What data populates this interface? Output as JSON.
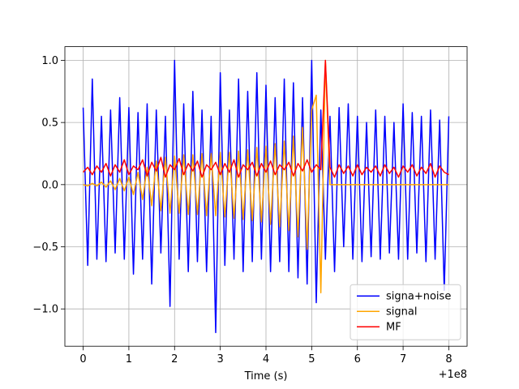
{
  "chart_data": {
    "type": "line",
    "xlabel": "Time (s)",
    "x_offset_label": "+1e8",
    "x": [
      0,
      0.1,
      0.2,
      0.3,
      0.4,
      0.5,
      0.6,
      0.7,
      0.8,
      0.9,
      1,
      1.1,
      1.2,
      1.3,
      1.4,
      1.5,
      1.6,
      1.7,
      1.8,
      1.9,
      2,
      2.1,
      2.2,
      2.3,
      2.4,
      2.5,
      2.6,
      2.7,
      2.8,
      2.9,
      3,
      3.1,
      3.2,
      3.3,
      3.4,
      3.5,
      3.6,
      3.7,
      3.8,
      3.9,
      4,
      4.1,
      4.2,
      4.3,
      4.4,
      4.5,
      4.6,
      4.7,
      4.8,
      4.9,
      5,
      5.1,
      5.2,
      5.3,
      5.4,
      5.5,
      5.6,
      5.7,
      5.8,
      5.9,
      6,
      6.1,
      6.2,
      6.3,
      6.4,
      6.5,
      6.6,
      6.7,
      6.8,
      6.9,
      7,
      7.1,
      7.2,
      7.3,
      7.4,
      7.5,
      7.6,
      7.7,
      7.8,
      7.9,
      8
    ],
    "series": [
      {
        "name": "signa+noise",
        "color": "#0000ff",
        "values": [
          0.62,
          -0.65,
          0.85,
          -0.6,
          0.55,
          -0.62,
          0.6,
          -0.55,
          0.7,
          -0.6,
          0.62,
          -0.72,
          0.58,
          -0.6,
          0.65,
          -0.8,
          0.6,
          -0.55,
          0.55,
          -0.98,
          1.0,
          -0.6,
          0.65,
          -0.7,
          0.75,
          -0.62,
          0.6,
          -0.7,
          0.55,
          -1.19,
          0.9,
          -0.65,
          0.6,
          -0.6,
          0.85,
          -0.7,
          0.75,
          -0.62,
          0.9,
          -0.6,
          0.8,
          -0.7,
          0.7,
          -0.62,
          0.85,
          -0.7,
          0.82,
          -0.75,
          0.7,
          -0.8,
          1.0,
          -0.95,
          0.6,
          -0.6,
          0.55,
          -0.7,
          0.62,
          -0.5,
          0.65,
          -0.6,
          0.55,
          -0.62,
          0.5,
          -0.58,
          0.6,
          -0.6,
          0.55,
          -0.55,
          0.5,
          -0.6,
          0.65,
          -0.6,
          0.58,
          -0.55,
          0.55,
          -0.62,
          0.6,
          -0.6,
          0.52,
          -0.85,
          0.55
        ]
      },
      {
        "name": "signal",
        "color": "#ffa500",
        "values": [
          0,
          -0.01,
          0.01,
          -0.01,
          0.02,
          -0.02,
          0.03,
          -0.04,
          0.05,
          -0.05,
          0.06,
          -0.08,
          0.1,
          -0.12,
          0.14,
          -0.17,
          0.19,
          -0.21,
          0.22,
          -0.23,
          0.23,
          -0.23,
          0.24,
          -0.24,
          0.24,
          -0.24,
          0.25,
          -0.25,
          0.25,
          -0.25,
          0.26,
          -0.26,
          0.26,
          -0.27,
          0.27,
          -0.28,
          0.28,
          -0.29,
          0.3,
          -0.3,
          0.31,
          -0.32,
          0.33,
          -0.34,
          0.35,
          -0.37,
          0.39,
          -0.42,
          0.46,
          -0.52,
          0.6,
          0.72,
          -0.87,
          1.0,
          0,
          0,
          0,
          0,
          0,
          0,
          0,
          0,
          0,
          0,
          0,
          0,
          0,
          0,
          0,
          0,
          0,
          0,
          0,
          0,
          0,
          0,
          0,
          0,
          0,
          0,
          0
        ]
      },
      {
        "name": "MF",
        "color": "#ff0000",
        "values": [
          0.1,
          0.14,
          0.08,
          0.15,
          0.1,
          0.17,
          0.07,
          0.16,
          0.1,
          0.2,
          0.08,
          0.15,
          0.12,
          0.2,
          0.07,
          0.18,
          0.11,
          0.22,
          0.06,
          0.16,
          0.12,
          0.21,
          0.08,
          0.17,
          0.11,
          0.19,
          0.06,
          0.16,
          0.12,
          0.18,
          0.08,
          0.17,
          0.1,
          0.2,
          0.06,
          0.16,
          0.12,
          0.18,
          0.07,
          0.17,
          0.1,
          0.19,
          0.08,
          0.16,
          0.12,
          0.18,
          0.07,
          0.17,
          0.11,
          0.2,
          0.1,
          0.16,
          0.12,
          1.0,
          0.14,
          0.06,
          0.16,
          0.09,
          0.15,
          0.07,
          0.16,
          0.08,
          0.14,
          0.1,
          0.15,
          0.07,
          0.16,
          0.09,
          0.14,
          0.06,
          0.15,
          0.1,
          0.16,
          0.07,
          0.14,
          0.09,
          0.17,
          0.06,
          0.15,
          0.1,
          0.08
        ]
      }
    ],
    "xlim": [
      -0.4,
      8.4
    ],
    "ylim": [
      -1.3,
      1.11
    ],
    "xticks": [
      0,
      1,
      2,
      3,
      4,
      5,
      6,
      7,
      8
    ],
    "yticks": [
      {
        "value": -1,
        "label": "−1.0"
      },
      {
        "value": -0.5,
        "label": "−0.5"
      },
      {
        "value": 0,
        "label": "0.0"
      },
      {
        "value": 0.5,
        "label": "0.5"
      },
      {
        "value": 1,
        "label": "1.0"
      }
    ],
    "grid": true,
    "legend": "lower right"
  }
}
